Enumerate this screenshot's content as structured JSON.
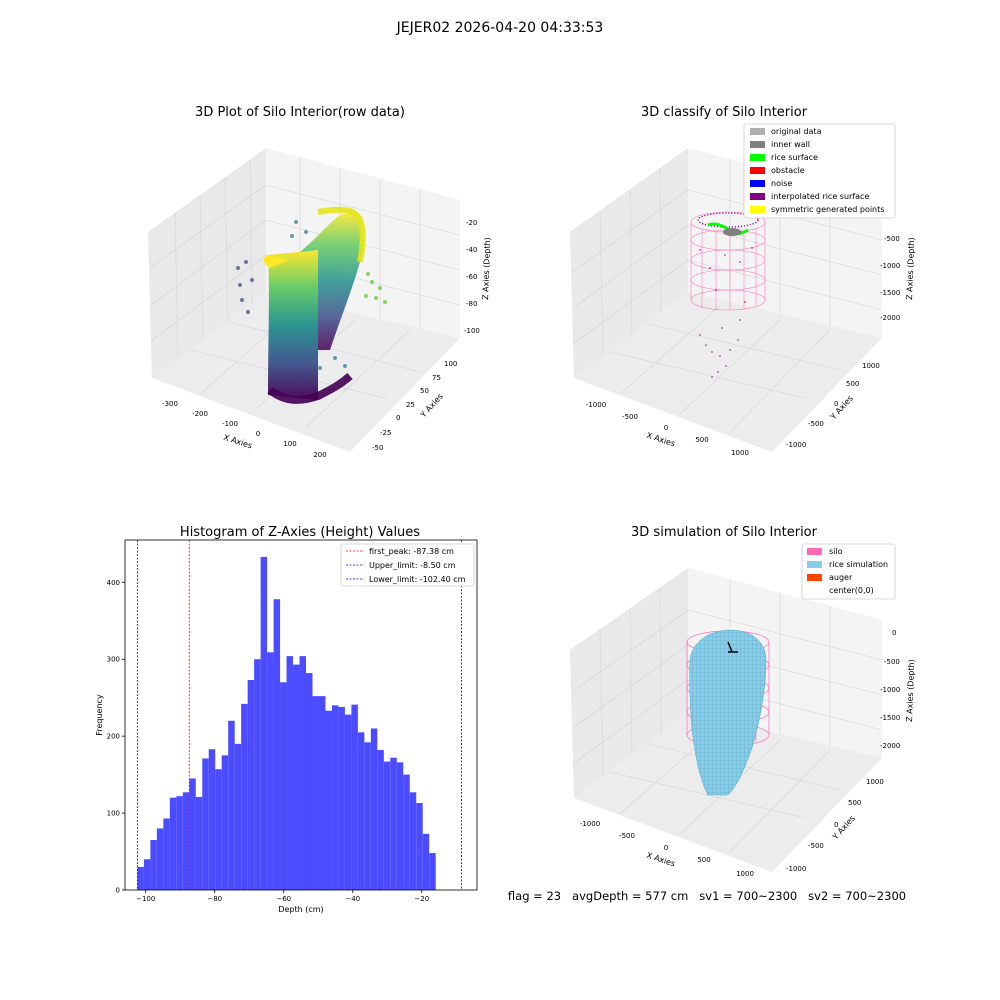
{
  "figure": {
    "suptitle": "JEJER02 2026-04-20 04:33:53",
    "footer": "flag = 23   avgDepth = 577 cm   sv1 = 700~2300   sv2 = 700~2300"
  },
  "chart_data": [
    {
      "type": "scatter",
      "projection": "3d",
      "title": "3D Plot of Silo Interior(row data)",
      "xlabel": "X Axies",
      "ylabel": "Y Axies",
      "zlabel": "Z Axies (Depth)",
      "xticks": [
        "-300",
        "-200",
        "-100",
        "0",
        "100",
        "200"
      ],
      "yticks": [
        "-50",
        "-25",
        "0",
        "25",
        "50",
        "75",
        "100"
      ],
      "zticks": [
        "-20",
        "-40",
        "-60",
        "-80",
        "-100"
      ],
      "colormap": "viridis"
    },
    {
      "type": "scatter",
      "projection": "3d",
      "title": "3D classify of Silo Interior",
      "xlabel": "X Axies",
      "ylabel": "Y Axies",
      "zlabel": "Z Axies (Depth)",
      "xticks": [
        "-1000",
        "-500",
        "0",
        "500",
        "1000"
      ],
      "yticks": [
        "-1000",
        "-500",
        "0",
        "500",
        "1000"
      ],
      "zticks": [
        "-500",
        "-1000",
        "-1500",
        "-2000"
      ],
      "legend": [
        {
          "label": "original data",
          "color": "#b0b0b0"
        },
        {
          "label": "inner wall",
          "color": "#808080"
        },
        {
          "label": "rice surface",
          "color": "#00ff00"
        },
        {
          "label": "obstacle",
          "color": "#ff0000"
        },
        {
          "label": "noise",
          "color": "#0000ff"
        },
        {
          "label": "interpolated rice surface",
          "color": "#800080"
        },
        {
          "label": "symmetric generated points",
          "color": "#ffff00"
        }
      ]
    },
    {
      "type": "bar",
      "title": "Histogram of Z-Axies (Height) Values",
      "xlabel": "Depth (cm)",
      "ylabel": "Frequency",
      "xlim": [
        -106,
        -4
      ],
      "ylim": [
        0,
        455
      ],
      "xticks": [
        -100,
        -80,
        -60,
        -40,
        -20
      ],
      "yticks": [
        0,
        100,
        200,
        300,
        400
      ],
      "bar_color": "#4b4bff",
      "bin_start": -102.4,
      "bin_width": 1.8789,
      "values": [
        30,
        40,
        65,
        80,
        93,
        120,
        122,
        127,
        145,
        121,
        171,
        183,
        157,
        175,
        220,
        190,
        242,
        273,
        300,
        433,
        309,
        378,
        270,
        304,
        293,
        304,
        282,
        252,
        252,
        233,
        240,
        238,
        228,
        241,
        205,
        192,
        210,
        182,
        167,
        172,
        166,
        150,
        127,
        113,
        73,
        48
      ],
      "lines": [
        {
          "label": "first_peak: -87.38 cm",
          "x": -87.38,
          "color": "#ff0000"
        },
        {
          "label": "Upper_limit: -8.50 cm",
          "x": -8.5,
          "color": "#0000ff"
        },
        {
          "label": "Lower_limit: -102.40 cm",
          "x": -102.4,
          "color": "#0000ff"
        }
      ]
    },
    {
      "type": "area",
      "projection": "3d",
      "title": "3D simulation of Silo Interior",
      "xlabel": "X Axies",
      "ylabel": "Y Axies",
      "zlabel": "Z Axies (Depth)",
      "xticks": [
        "-1000",
        "-500",
        "0",
        "500",
        "1000"
      ],
      "yticks": [
        "-1000",
        "-500",
        "0",
        "500",
        "1000"
      ],
      "zticks": [
        "0",
        "-500",
        "-1000",
        "-1500",
        "-2000"
      ],
      "legend": [
        {
          "label": "silo",
          "color": "#ff69b4"
        },
        {
          "label": "rice simulation",
          "color": "#87ceeb"
        },
        {
          "label": "auger",
          "color": "#ff4500"
        },
        {
          "label": "center(0,0)",
          "color": ""
        }
      ]
    }
  ]
}
